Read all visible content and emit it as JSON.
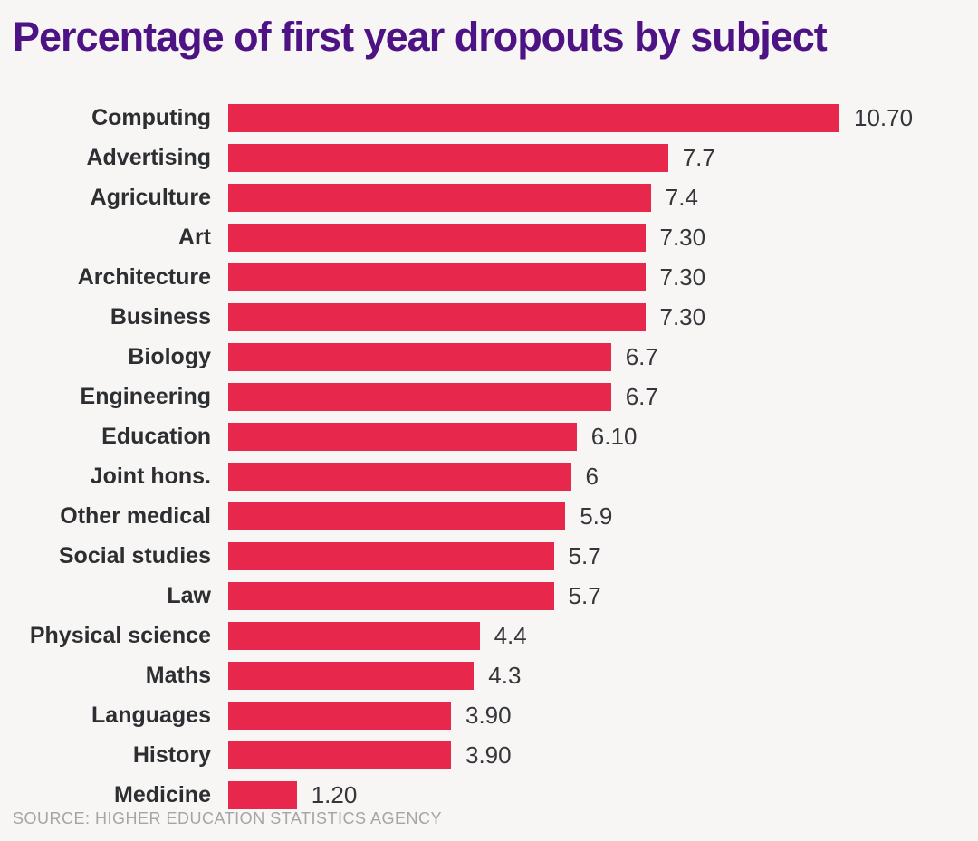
{
  "title": "Percentage of first year dropouts by subject",
  "source": "SOURCE: HIGHER EDUCATION STATISTICS AGENCY",
  "colors": {
    "background": "#f7f6f4",
    "bar": "#e8274c",
    "title_text": "#4d1284",
    "category_text": "#2d2e31",
    "value_text": "#35363b",
    "source_text": "#a5a5a5"
  },
  "chart_data": {
    "type": "bar",
    "orientation": "horizontal",
    "title": "Percentage of first year dropouts by subject",
    "xlabel": "",
    "ylabel": "",
    "xlim": [
      0,
      10.7
    ],
    "grid": false,
    "legend": false,
    "categories": [
      "Computing",
      "Advertising",
      "Agriculture",
      "Art",
      "Architecture",
      "Business",
      "Biology",
      "Engineering",
      "Education",
      "Joint hons.",
      "Other medical",
      "Social studies",
      "Law",
      "Physical science",
      "Maths",
      "Languages",
      "History",
      "Medicine"
    ],
    "values": [
      10.7,
      7.7,
      7.4,
      7.3,
      7.3,
      7.3,
      6.7,
      6.7,
      6.1,
      6,
      5.9,
      5.7,
      5.7,
      4.4,
      4.3,
      3.9,
      3.9,
      1.2
    ],
    "value_labels": [
      "10.70",
      "7.7",
      "7.4",
      "7.30",
      "7.30",
      "7.30",
      "6.7",
      "6.7",
      "6.10",
      "6",
      "5.9",
      "5.7",
      "5.7",
      "4.4",
      "4.3",
      "3.90",
      "3.90",
      "1.20"
    ],
    "source": "SOURCE: HIGHER EDUCATION STATISTICS AGENCY"
  }
}
